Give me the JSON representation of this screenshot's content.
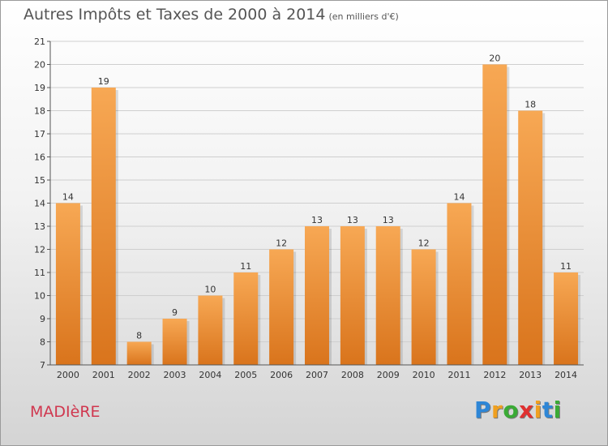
{
  "header": {
    "title": "Autres Impôts et Taxes de 2000 à 2014",
    "subtitle": "(en milliers d'€)"
  },
  "footer": {
    "town": "MADIèRE",
    "logo_letters": [
      {
        "ch": "P",
        "color": "#2e86d6"
      },
      {
        "ch": "r",
        "color": "#f0a020"
      },
      {
        "ch": "o",
        "color": "#3aaa35"
      },
      {
        "ch": "x",
        "color": "#e03030"
      },
      {
        "ch": "i",
        "color": "#f0a020"
      },
      {
        "ch": "t",
        "color": "#2e86d6"
      },
      {
        "ch": "i",
        "color": "#3aaa35"
      }
    ]
  },
  "chart_data": {
    "type": "bar",
    "title": "Autres Impôts et Taxes de 2000 à 2014",
    "subtitle": "(en milliers d'€)",
    "categories": [
      "2000",
      "2001",
      "2002",
      "2003",
      "2004",
      "2005",
      "2006",
      "2007",
      "2008",
      "2009",
      "2010",
      "2011",
      "2012",
      "2013",
      "2014"
    ],
    "values": [
      14,
      19,
      8,
      9,
      10,
      11,
      12,
      13,
      13,
      13,
      12,
      14,
      20,
      18,
      11
    ],
    "ylim": [
      7,
      21
    ],
    "yticks": [
      7,
      8,
      9,
      10,
      11,
      12,
      13,
      14,
      15,
      16,
      17,
      18,
      19,
      20,
      21
    ],
    "grid": true,
    "bar_color_top": "#f7a854",
    "bar_color_bottom": "#d9741c",
    "legend": "none"
  }
}
